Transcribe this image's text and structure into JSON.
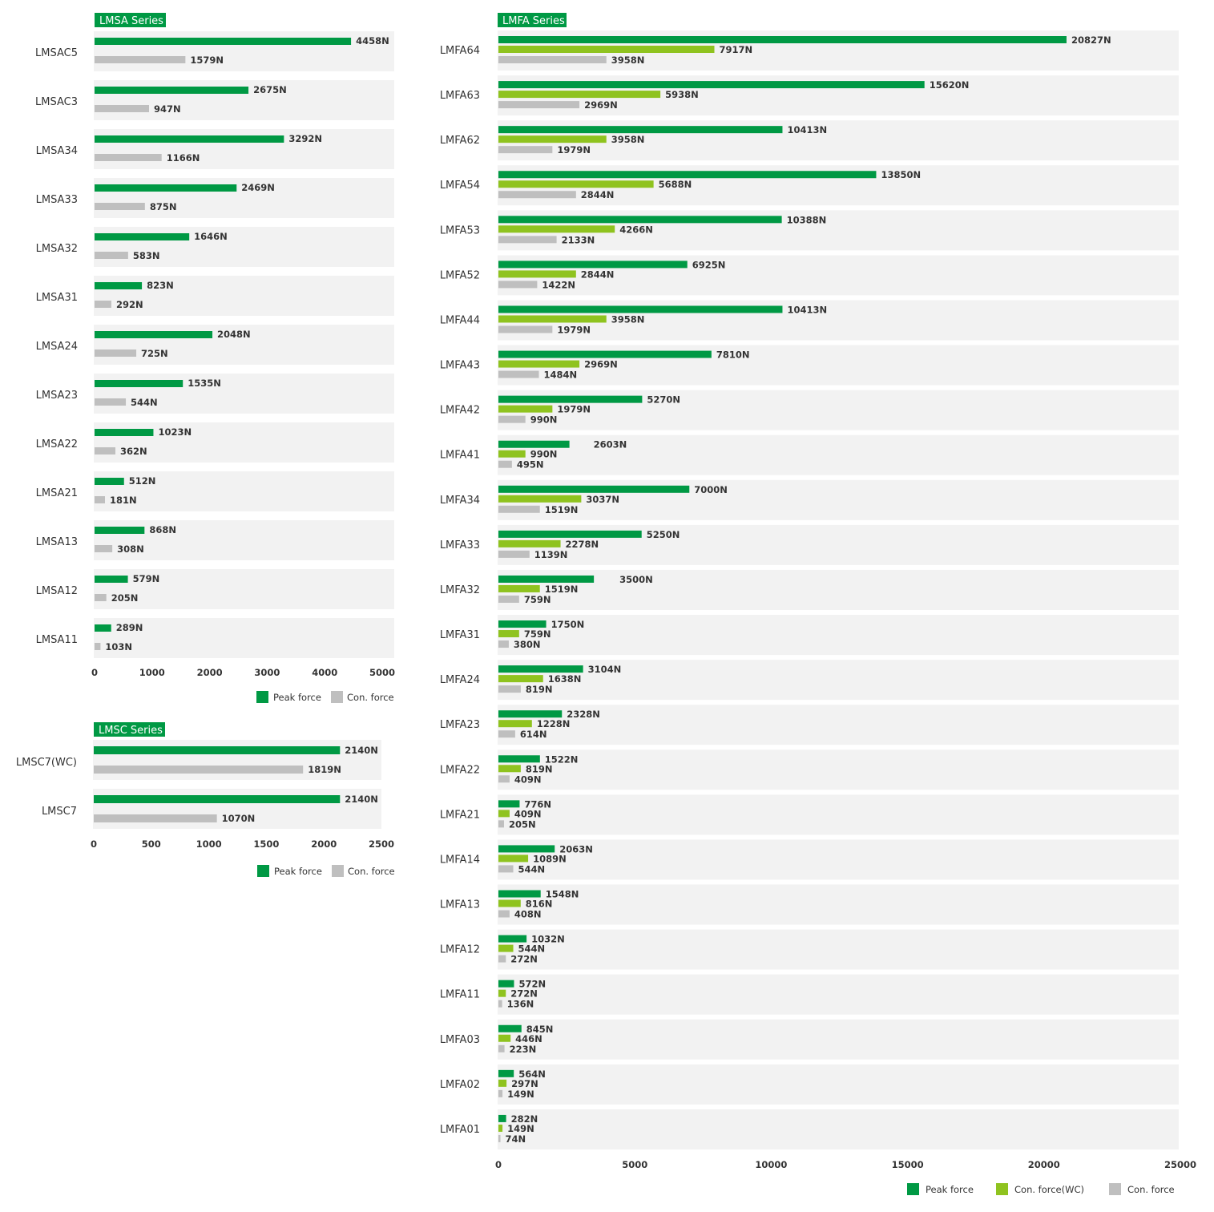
{
  "colors": {
    "peak": "#009944",
    "wc": "#8fc31f",
    "con": "#bfbfbf",
    "row_bg": "#f2f2f2",
    "title_bg": "#009944"
  },
  "chart_data": [
    {
      "id": "lmsa",
      "type": "bar",
      "title": "LMSA Series",
      "orientation": "horizontal",
      "categories": [
        "LMSAC5",
        "LMSAC3",
        "LMSA34",
        "LMSA33",
        "LMSA32",
        "LMSA31",
        "LMSA24",
        "LMSA23",
        "LMSA22",
        "LMSA21",
        "LMSA13",
        "LMSA12",
        "LMSA11"
      ],
      "series": [
        {
          "name": "Peak force",
          "color": "#009944",
          "values": [
            4458,
            2675,
            3292,
            2469,
            1646,
            823,
            2048,
            1535,
            1023,
            512,
            868,
            579,
            289
          ],
          "labels": [
            "4458N",
            "2675N",
            "3292N",
            "2469N",
            "1646N",
            "823N",
            "2048N",
            "1535N",
            "1023N",
            "512N",
            "868N",
            "579N",
            "289N"
          ]
        },
        {
          "name": "Con. force",
          "color": "#bfbfbf",
          "values": [
            1579,
            947,
            1166,
            875,
            583,
            292,
            725,
            544,
            362,
            181,
            308,
            205,
            103
          ],
          "labels": [
            "1579N",
            "947N",
            "1166N",
            "875N",
            "583N",
            "292N",
            "725N",
            "544N",
            "362N",
            "181N",
            "308N",
            "205N",
            "103N"
          ]
        }
      ],
      "xlim": [
        0,
        5200
      ],
      "ticks": [
        0,
        1000,
        2000,
        3000,
        4000,
        5000
      ],
      "tick_labels": [
        "0",
        "1000",
        "2000",
        "3000",
        "4000",
        "5000"
      ],
      "legend": [
        "Peak force",
        "Con. force"
      ],
      "legend_position": "bottom-right",
      "grid": false
    },
    {
      "id": "lmsc",
      "type": "bar",
      "title": "LMSC Series",
      "orientation": "horizontal",
      "categories": [
        "LMSC7(WC)",
        "LMSC7"
      ],
      "series": [
        {
          "name": "Peak force",
          "color": "#009944",
          "values": [
            2140,
            2140
          ],
          "labels": [
            "2140N",
            "2140N"
          ]
        },
        {
          "name": "Con. force",
          "color": "#bfbfbf",
          "values": [
            1819,
            1070
          ],
          "labels": [
            "1819N",
            "1070N"
          ]
        }
      ],
      "xlim": [
        0,
        2500
      ],
      "ticks": [
        0,
        500,
        1000,
        1500,
        2000,
        2500
      ],
      "tick_labels": [
        "0",
        "500",
        "1000",
        "1500",
        "2000",
        "2500"
      ],
      "legend": [
        "Peak force",
        "Con. force"
      ],
      "legend_position": "bottom-right",
      "grid": false
    },
    {
      "id": "lmfa",
      "type": "bar",
      "title": "LMFA Series",
      "orientation": "horizontal",
      "categories": [
        "LMFA64",
        "LMFA63",
        "LMFA62",
        "LMFA54",
        "LMFA53",
        "LMFA52",
        "LMFA44",
        "LMFA43",
        "LMFA42",
        "LMFA41",
        "LMFA34",
        "LMFA33",
        "LMFA32",
        "LMFA31",
        "LMFA24",
        "LMFA23",
        "LMFA22",
        "LMFA21",
        "LMFA14",
        "LMFA13",
        "LMFA12",
        "LMFA11",
        "LMFA03",
        "LMFA02",
        "LMFA01"
      ],
      "series": [
        {
          "name": "Peak force",
          "color": "#009944",
          "values": [
            20827,
            15620,
            10413,
            13850,
            10388,
            6925,
            10413,
            7810,
            5270,
            2603,
            7000,
            5250,
            3500,
            1750,
            3104,
            2328,
            1522,
            776,
            2063,
            1548,
            1032,
            572,
            845,
            564,
            282
          ],
          "labels": [
            "20827N",
            "15620N",
            "10413N",
            "13850N",
            "10388N",
            "6925N",
            "10413N",
            "7810N",
            "5270N",
            "2603N",
            "7000N",
            "5250N",
            "3500N",
            "1750N",
            "3104N",
            "2328N",
            "1522N",
            "776N",
            "2063N",
            "1548N",
            "1032N",
            "572N",
            "845N",
            "564N",
            "282N"
          ]
        },
        {
          "name": "Con. force(WC)",
          "color": "#8fc31f",
          "values": [
            7917,
            5938,
            3958,
            5688,
            4266,
            2844,
            3958,
            2969,
            1979,
            990,
            3037,
            2278,
            1519,
            759,
            1638,
            1228,
            819,
            409,
            1089,
            816,
            544,
            272,
            446,
            297,
            149
          ],
          "labels": [
            "7917N",
            "5938N",
            "3958N",
            "5688N",
            "4266N",
            "2844N",
            "3958N",
            "2969N",
            "1979N",
            "990N",
            "3037N",
            "2278N",
            "1519N",
            "759N",
            "1638N",
            "1228N",
            "819N",
            "409N",
            "1089N",
            "816N",
            "544N",
            "272N",
            "446N",
            "297N",
            "149N"
          ]
        },
        {
          "name": "Con. force",
          "color": "#bfbfbf",
          "values": [
            3958,
            2969,
            1979,
            2844,
            2133,
            1422,
            1979,
            1484,
            990,
            495,
            1519,
            1139,
            759,
            380,
            819,
            614,
            409,
            205,
            544,
            408,
            272,
            136,
            223,
            149,
            74
          ],
          "labels": [
            "3958N",
            "2969N",
            "1979N",
            "2844N",
            "2133N",
            "1422N",
            "1979N",
            "1484N",
            "990N",
            "495N",
            "1519N",
            "1139N",
            "759N",
            "380N",
            "819N",
            "614N",
            "409N",
            "205N",
            "544N",
            "408N",
            "272N",
            "136N",
            "223N",
            "149N",
            "74N"
          ]
        }
      ],
      "xlim": [
        0,
        25000
      ],
      "ticks": [
        0,
        5000,
        10000,
        15000,
        20000,
        25000
      ],
      "tick_labels": [
        "0",
        "5000",
        "10000",
        "15000",
        "20000",
        "25000"
      ],
      "legend": [
        "Peak force",
        "Con. force(WC)",
        "Con. force"
      ],
      "legend_position": "bottom-right",
      "grid": false
    }
  ]
}
